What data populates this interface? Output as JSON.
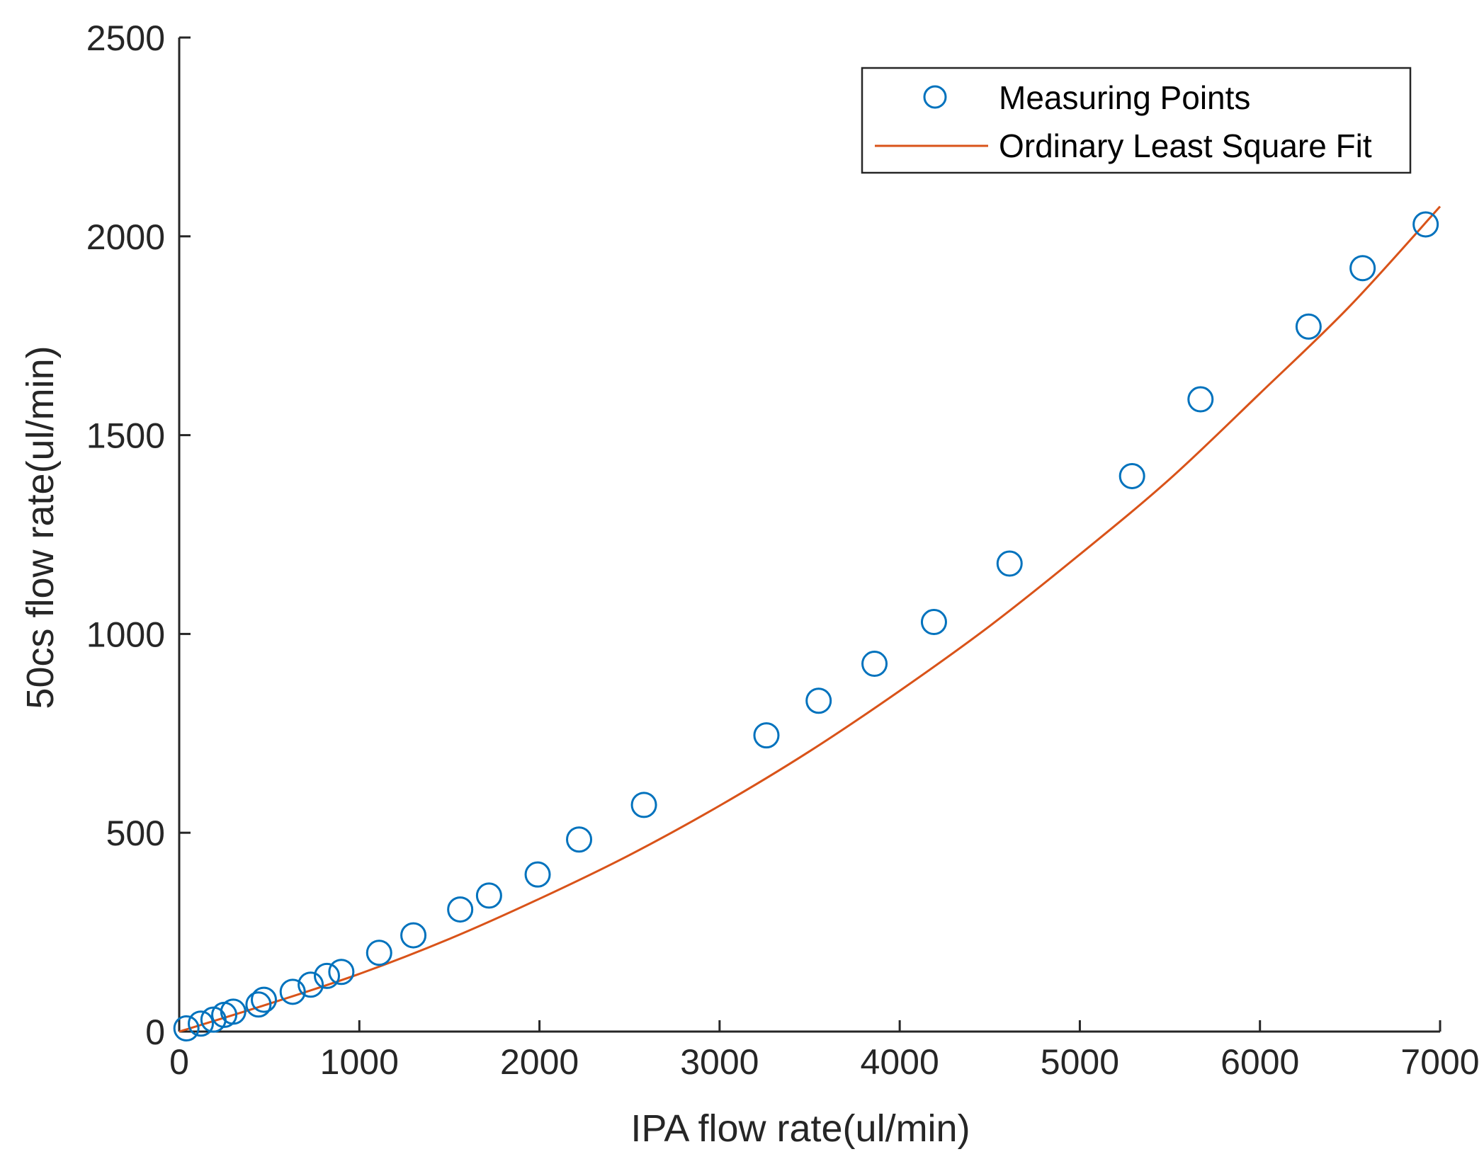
{
  "colors": {
    "points": "#0072BD",
    "fit": "#D95319",
    "axis": "#262626"
  },
  "chart_data": {
    "type": "scatter",
    "xlabel": "IPA flow rate(ul/min)",
    "ylabel": "50cs flow rate(ul/min)",
    "xlim": [
      0,
      7000
    ],
    "ylim": [
      0,
      2500
    ],
    "x_ticks": [
      "0",
      "1000",
      "2000",
      "3000",
      "4000",
      "5000",
      "6000",
      "7000"
    ],
    "y_ticks": [
      "0",
      "500",
      "1000",
      "1500",
      "2000",
      "2500"
    ],
    "grid": false,
    "legend_position": "top-right",
    "series": [
      {
        "name": "Measuring Points",
        "kind": "markers",
        "marker": "circle",
        "points": [
          [
            40,
            8
          ],
          [
            120,
            20
          ],
          [
            190,
            30
          ],
          [
            250,
            42
          ],
          [
            300,
            50
          ],
          [
            440,
            68
          ],
          [
            470,
            80
          ],
          [
            630,
            100
          ],
          [
            730,
            118
          ],
          [
            820,
            140
          ],
          [
            900,
            150
          ],
          [
            1110,
            198
          ],
          [
            1300,
            242
          ],
          [
            1560,
            307
          ],
          [
            1720,
            342
          ],
          [
            1990,
            395
          ],
          [
            2220,
            483
          ],
          [
            2580,
            570
          ],
          [
            3260,
            745
          ],
          [
            3550,
            832
          ],
          [
            3860,
            925
          ],
          [
            4190,
            1030
          ],
          [
            4610,
            1177
          ],
          [
            5290,
            1397
          ],
          [
            5670,
            1590
          ],
          [
            6270,
            1773
          ],
          [
            6570,
            1920
          ],
          [
            6920,
            2030
          ]
        ]
      },
      {
        "name": "Ordinary Least Square Fit",
        "kind": "line",
        "x": [
          0,
          500,
          1000,
          1500,
          2000,
          2500,
          3000,
          3500,
          4000,
          4500,
          5000,
          5500,
          6000,
          6500,
          7000
        ],
        "y": [
          0,
          70,
          145,
          233,
          334,
          444,
          568,
          705,
          857,
          1020,
          1200,
          1390,
          1605,
          1825,
          2075
        ]
      }
    ]
  }
}
